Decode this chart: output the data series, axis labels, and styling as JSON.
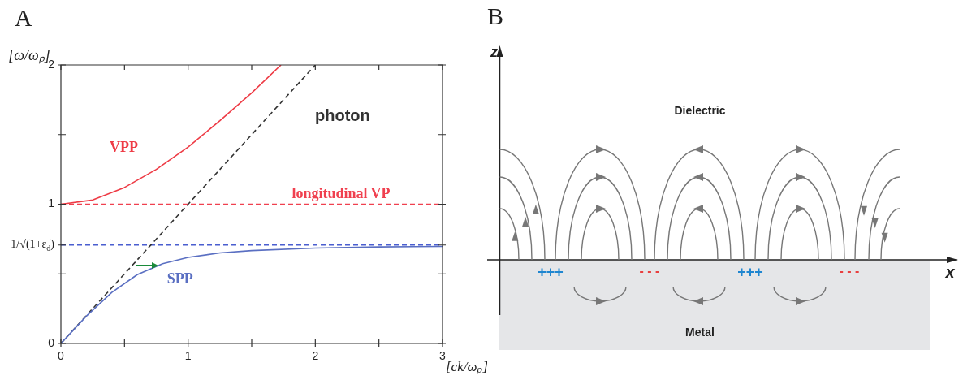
{
  "chart_data": [
    {
      "type": "line",
      "title": "A",
      "xlabel": "[ck/ωₚ]",
      "ylabel": "[ω/ωₚ]",
      "xlim": [
        0,
        3
      ],
      "ylim": [
        0,
        2
      ],
      "xticks": [
        0,
        {
          "value": 0.5,
          "label": null
        },
        1,
        {
          "value": 1.5,
          "label": null
        },
        2,
        {
          "value": 2.5,
          "label": null
        },
        3
      ],
      "yticks": [
        0,
        {
          "value": 0.5,
          "label": null
        },
        {
          "value": 0.707,
          "label": "1/√(1+ε$_{d}$)"
        },
        1,
        {
          "value": 1.5,
          "label": null
        },
        2
      ],
      "marker": "none",
      "series": [
        {
          "name": "VPP",
          "color": "#ee3b45",
          "x": [
            0,
            0.25,
            0.5,
            0.75,
            1,
            1.25,
            1.5,
            1.73
          ],
          "values": [
            1,
            1.03,
            1.12,
            1.25,
            1.41,
            1.6,
            1.8,
            2
          ]
        },
        {
          "name": "SPP",
          "color": "#5a6fc2",
          "x": [
            0,
            0.2,
            0.4,
            0.6,
            0.8,
            1,
            1.25,
            1.5,
            2,
            2.5,
            3
          ],
          "values": [
            0,
            0.196,
            0.367,
            0.494,
            0.573,
            0.618,
            0.65,
            0.667,
            0.685,
            0.693,
            0.697
          ]
        },
        {
          "name": "photon",
          "color": "#333333",
          "line_style": "dashed",
          "x": [
            0,
            2
          ],
          "values": [
            0,
            2
          ]
        }
      ],
      "ref_lines": [
        {
          "axis": "y",
          "value": 1,
          "label": "longitudinal VP",
          "color": "#f0404f",
          "line_style": "dashed"
        },
        {
          "axis": "y",
          "value": 0.707,
          "color": "#4a5ed0",
          "line_style": "dashed"
        }
      ]
    },
    {
      "type": "other",
      "title": "B",
      "annotations": [
        "z",
        "x",
        "Dielectric",
        "Metal",
        "+++",
        "- - -",
        "+++",
        "- - -"
      ]
    }
  ]
}
